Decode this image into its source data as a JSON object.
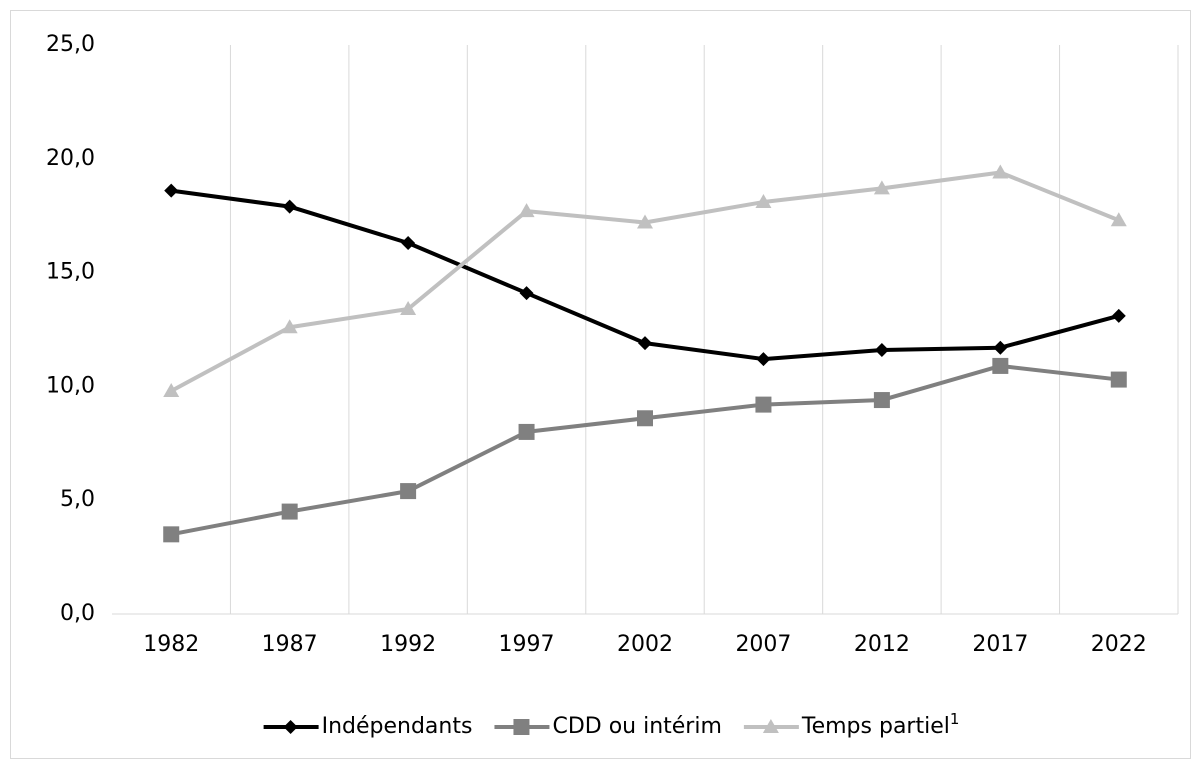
{
  "chart_data": {
    "type": "line",
    "categories": [
      "1982",
      "1987",
      "1992",
      "1997",
      "2002",
      "2007",
      "2012",
      "2017",
      "2022"
    ],
    "series": [
      {
        "name": "Indépendants",
        "color": "#000000",
        "marker": "diamond",
        "values": [
          18.6,
          17.9,
          16.3,
          14.1,
          11.9,
          11.2,
          11.6,
          11.7,
          13.1
        ]
      },
      {
        "name": "CDD ou intérim",
        "color": "#808080",
        "marker": "square",
        "values": [
          3.5,
          4.5,
          5.4,
          8.0,
          8.6,
          9.2,
          9.4,
          10.9,
          10.3
        ]
      },
      {
        "name": "Temps partiel",
        "footnote_mark": "1",
        "color": "#c0c0c0",
        "marker": "triangle",
        "values": [
          9.8,
          12.6,
          13.4,
          17.7,
          17.2,
          18.1,
          18.7,
          19.4,
          17.3
        ]
      }
    ],
    "ylim": [
      0,
      25
    ],
    "yticks": [
      {
        "value": 0,
        "label": "0,0"
      },
      {
        "value": 5,
        "label": "5,0"
      },
      {
        "value": 10,
        "label": "10,0"
      },
      {
        "value": 15,
        "label": "15,0"
      },
      {
        "value": 20,
        "label": "20,0"
      },
      {
        "value": 25,
        "label": "25,0"
      }
    ],
    "grid": true,
    "legend": "bottom"
  }
}
